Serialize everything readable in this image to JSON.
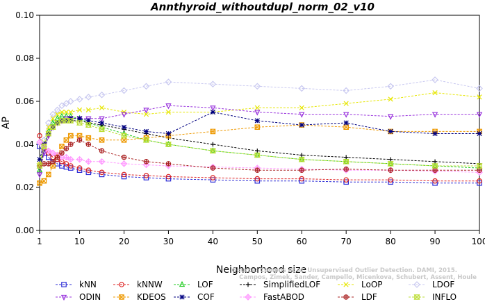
{
  "chart_data": {
    "type": "line",
    "title": "Annthyroid_withoutdupl_norm_02_v10",
    "xlabel": "Neighborhood size",
    "ylabel": "AP",
    "xlim": [
      1,
      100
    ],
    "ylim": [
      0.0,
      0.1
    ],
    "x_ticks": [
      1,
      10,
      20,
      30,
      40,
      50,
      60,
      70,
      80,
      90,
      100
    ],
    "y_ticks": [
      "0.00",
      "0.02",
      "0.04",
      "0.06",
      "0.08",
      "0.10"
    ],
    "legend_placement": "bottom",
    "watermark": [
      "Source: Campos et al. Unsupervised Outlier Detection. DAMI, 2015.",
      "Campos, Zimek, Sander, Campello, Micenkova, Schubert, Assent, Houle"
    ],
    "series": [
      {
        "name": "kNN",
        "color": "#2b2bd6",
        "marker": "square",
        "x": [
          1,
          2,
          3,
          4,
          5,
          6,
          7,
          8,
          10,
          12,
          15,
          20,
          25,
          30,
          40,
          50,
          60,
          70,
          80,
          90,
          100
        ],
        "values": [
          0.039,
          0.036,
          0.034,
          0.032,
          0.031,
          0.03,
          0.0295,
          0.029,
          0.028,
          0.027,
          0.026,
          0.025,
          0.0245,
          0.024,
          0.0235,
          0.023,
          0.023,
          0.0225,
          0.0225,
          0.022,
          0.022
        ]
      },
      {
        "name": "kNNW",
        "color": "#dd2222",
        "marker": "circle",
        "x": [
          1,
          2,
          3,
          4,
          5,
          6,
          7,
          8,
          10,
          12,
          15,
          20,
          25,
          30,
          40,
          50,
          60,
          70,
          80,
          90,
          100
        ],
        "values": [
          0.044,
          0.038,
          0.036,
          0.034,
          0.033,
          0.032,
          0.031,
          0.03,
          0.029,
          0.028,
          0.027,
          0.026,
          0.0255,
          0.025,
          0.0245,
          0.024,
          0.024,
          0.0235,
          0.0235,
          0.023,
          0.023
        ]
      },
      {
        "name": "LOF",
        "color": "#22cc22",
        "marker": "triangle",
        "x": [
          1,
          2,
          3,
          4,
          5,
          6,
          7,
          8,
          10,
          12,
          15,
          20,
          25,
          30,
          40,
          50,
          60,
          70,
          80,
          90,
          100
        ],
        "values": [
          0.028,
          0.04,
          0.046,
          0.05,
          0.052,
          0.053,
          0.053,
          0.053,
          0.052,
          0.05,
          0.048,
          0.045,
          0.042,
          0.04,
          0.037,
          0.035,
          0.033,
          0.032,
          0.031,
          0.03,
          0.029
        ]
      },
      {
        "name": "SimplifiedLOF",
        "color": "#000000",
        "marker": "plus",
        "x": [
          1,
          2,
          3,
          4,
          5,
          6,
          7,
          8,
          10,
          12,
          15,
          20,
          25,
          30,
          40,
          50,
          60,
          70,
          80,
          90,
          100
        ],
        "values": [
          0.029,
          0.037,
          0.044,
          0.048,
          0.05,
          0.051,
          0.051,
          0.051,
          0.051,
          0.05,
          0.049,
          0.047,
          0.045,
          0.043,
          0.04,
          0.037,
          0.035,
          0.034,
          0.033,
          0.032,
          0.031
        ]
      },
      {
        "name": "LoOP",
        "color": "#e6e600",
        "marker": "x",
        "x": [
          1,
          2,
          3,
          4,
          5,
          6,
          7,
          8,
          10,
          12,
          15,
          20,
          25,
          30,
          40,
          50,
          60,
          70,
          80,
          90,
          100
        ],
        "values": [
          0.031,
          0.041,
          0.048,
          0.052,
          0.054,
          0.055,
          0.055,
          0.055,
          0.056,
          0.056,
          0.057,
          0.055,
          0.054,
          0.055,
          0.055,
          0.057,
          0.057,
          0.059,
          0.061,
          0.064,
          0.062
        ]
      },
      {
        "name": "LDOF",
        "color": "#c8c8f0",
        "marker": "diamond",
        "x": [
          1,
          2,
          3,
          4,
          5,
          6,
          7,
          8,
          10,
          12,
          15,
          20,
          25,
          30,
          40,
          50,
          60,
          70,
          80,
          90,
          100
        ],
        "values": [
          0.03,
          0.042,
          0.05,
          0.054,
          0.056,
          0.058,
          0.059,
          0.06,
          0.061,
          0.062,
          0.063,
          0.065,
          0.067,
          0.069,
          0.068,
          0.067,
          0.066,
          0.065,
          0.067,
          0.07,
          0.066
        ]
      },
      {
        "name": "ODIN",
        "color": "#9933dd",
        "marker": "triangle-down",
        "x": [
          1,
          2,
          3,
          4,
          5,
          6,
          7,
          8,
          10,
          12,
          15,
          20,
          25,
          30,
          40,
          50,
          60,
          70,
          80,
          90,
          100
        ],
        "values": [
          0.026,
          0.036,
          0.044,
          0.048,
          0.05,
          0.051,
          0.052,
          0.052,
          0.052,
          0.052,
          0.052,
          0.054,
          0.056,
          0.058,
          0.057,
          0.055,
          0.054,
          0.054,
          0.053,
          0.054,
          0.054
        ]
      },
      {
        "name": "KDEOS",
        "color": "#ee9900",
        "marker": "square-x",
        "x": [
          1,
          2,
          3,
          4,
          5,
          6,
          7,
          8,
          10,
          12,
          15,
          20,
          25,
          30,
          40,
          50,
          60,
          70,
          80,
          90,
          100
        ],
        "values": [
          0.022,
          0.023,
          0.026,
          0.03,
          0.035,
          0.039,
          0.042,
          0.044,
          0.044,
          0.043,
          0.042,
          0.042,
          0.043,
          0.044,
          0.046,
          0.048,
          0.049,
          0.048,
          0.046,
          0.046,
          0.046
        ]
      },
      {
        "name": "COF",
        "color": "#000080",
        "marker": "star",
        "x": [
          1,
          2,
          3,
          4,
          5,
          6,
          7,
          8,
          10,
          12,
          15,
          20,
          25,
          30,
          40,
          50,
          60,
          70,
          80,
          90,
          100
        ],
        "values": [
          0.033,
          0.04,
          0.045,
          0.048,
          0.05,
          0.051,
          0.051,
          0.052,
          0.052,
          0.051,
          0.05,
          0.048,
          0.046,
          0.045,
          0.055,
          0.051,
          0.049,
          0.05,
          0.046,
          0.045,
          0.045
        ]
      },
      {
        "name": "FastABOD",
        "color": "#ff99ff",
        "marker": "diamond-plus",
        "x": [
          1,
          2,
          3,
          4,
          5,
          6,
          7,
          8,
          10,
          12,
          15,
          20,
          25,
          30,
          40,
          50,
          60,
          70,
          80,
          90,
          100
        ],
        "values": [
          0.041,
          0.039,
          0.037,
          0.036,
          0.035,
          0.034,
          0.034,
          0.033,
          0.033,
          0.032,
          0.032,
          0.031,
          0.0305,
          0.03,
          0.0295,
          0.029,
          0.0285,
          0.028,
          0.028,
          0.0275,
          0.027
        ]
      },
      {
        "name": "LDF",
        "color": "#aa2222",
        "marker": "circle-plus",
        "x": [
          1,
          2,
          3,
          4,
          5,
          6,
          7,
          8,
          10,
          12,
          15,
          20,
          25,
          30,
          40,
          50,
          60,
          70,
          80,
          90,
          100
        ],
        "values": [
          0.03,
          0.031,
          0.031,
          0.032,
          0.034,
          0.036,
          0.038,
          0.04,
          0.042,
          0.04,
          0.037,
          0.034,
          0.032,
          0.031,
          0.029,
          0.028,
          0.028,
          0.0285,
          0.028,
          0.028,
          0.028
        ]
      },
      {
        "name": "INFLO",
        "color": "#bbdd33",
        "marker": "hourglass",
        "x": [
          1,
          2,
          3,
          4,
          5,
          6,
          7,
          8,
          10,
          12,
          15,
          20,
          25,
          30,
          40,
          50,
          60,
          70,
          80,
          90,
          100
        ],
        "values": [
          0.03,
          0.039,
          0.045,
          0.048,
          0.05,
          0.051,
          0.051,
          0.051,
          0.05,
          0.049,
          0.047,
          0.044,
          0.042,
          0.04,
          0.037,
          0.035,
          0.033,
          0.032,
          0.031,
          0.03,
          0.03
        ]
      }
    ]
  }
}
